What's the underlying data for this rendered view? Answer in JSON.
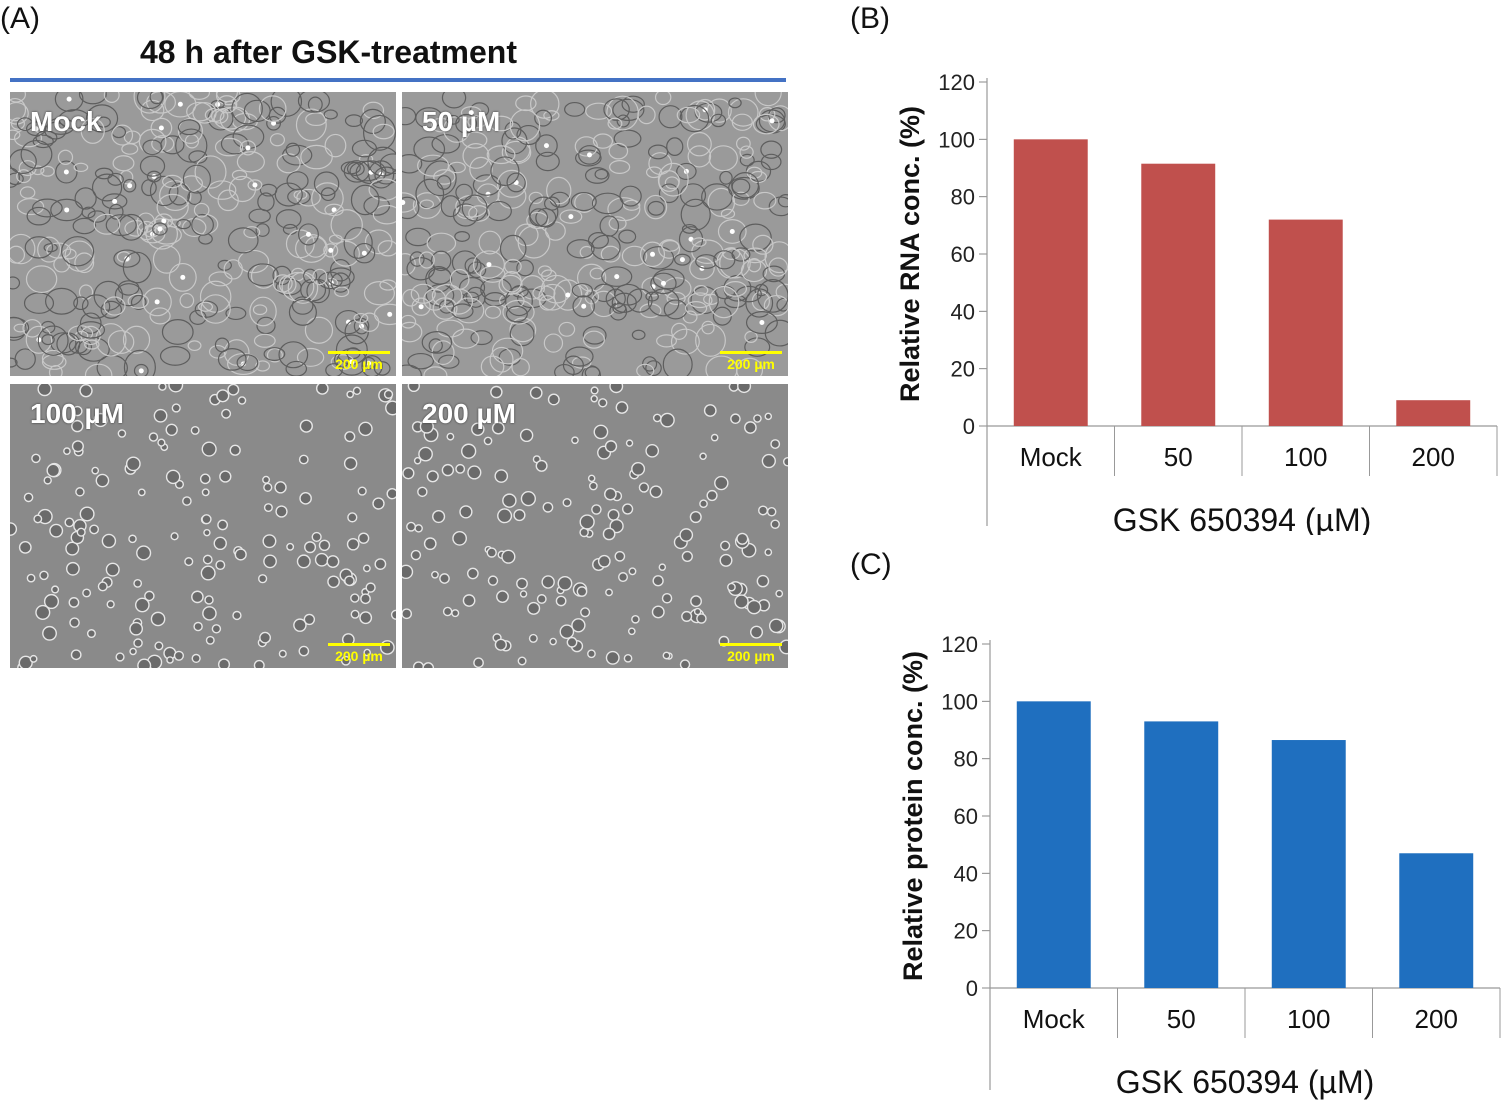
{
  "panel_a": {
    "letter": "(A)",
    "title": "48 h after GSK-treatment",
    "images": [
      {
        "label": "Mock",
        "scale": "200 µm",
        "density": "confluent"
      },
      {
        "label": "50 µM",
        "scale": "200 µm",
        "density": "confluent"
      },
      {
        "label": "100 µM",
        "scale": "200 µm",
        "density": "sparse"
      },
      {
        "label": "200 µM",
        "scale": "200 µm",
        "density": "sparse"
      }
    ],
    "colors": {
      "title_rule": "#4472c4",
      "scale_bar": "#ffff00"
    }
  },
  "panel_b": {
    "letter": "(B)"
  },
  "panel_c": {
    "letter": "(C)"
  },
  "chart_data": [
    {
      "type": "bar",
      "panel": "B",
      "categories": [
        "Mock",
        "50",
        "100",
        "200"
      ],
      "values": [
        100,
        91.5,
        72,
        9
      ],
      "ylabel": "Relative RNA conc. (%)",
      "xlabel": "GSK 650394 (µM)",
      "ylim": [
        0,
        120
      ],
      "yticks": [
        0,
        20,
        40,
        60,
        80,
        100,
        120
      ],
      "color": "#c0504d"
    },
    {
      "type": "bar",
      "panel": "C",
      "categories": [
        "Mock",
        "50",
        "100",
        "200"
      ],
      "values": [
        100,
        93,
        86.5,
        47
      ],
      "ylabel": "Relative protein conc. (%)",
      "xlabel": "GSK 650394 (µM)",
      "ylim": [
        0,
        120
      ],
      "yticks": [
        0,
        20,
        40,
        60,
        80,
        100,
        120
      ],
      "color": "#1f6fbf"
    }
  ]
}
